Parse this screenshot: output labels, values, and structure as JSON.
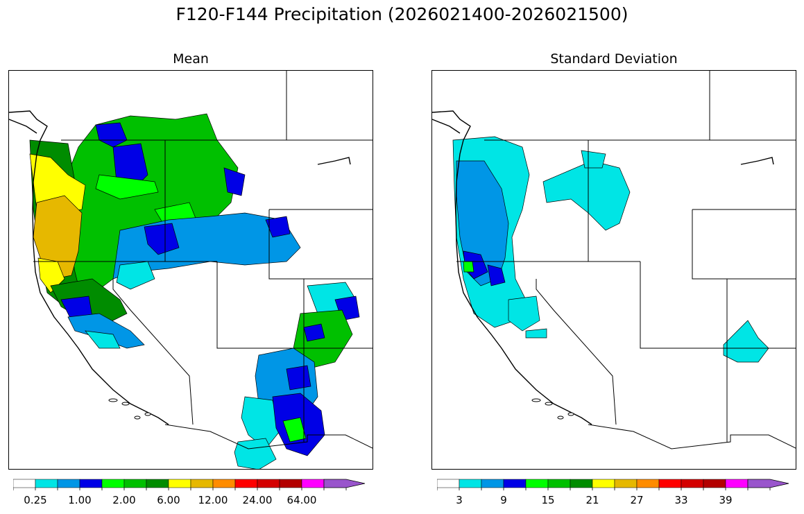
{
  "figure": {
    "title": "F120-F144 Precipitation (2026021400-2026021500)"
  },
  "panels": [
    {
      "title": "Mean",
      "colorbar": {
        "colors": [
          "#ffffff",
          "#00e5e5",
          "#0096e6",
          "#0000e6",
          "#00ff00",
          "#00c000",
          "#008c00",
          "#ffff00",
          "#e6b800",
          "#ff8c00",
          "#ff0000",
          "#d40000",
          "#b30000",
          "#ff00ff",
          "#9955cc"
        ],
        "tick_labels": [
          "0.25",
          "1.00",
          "2.00",
          "6.00",
          "12.00",
          "24.00",
          "64.00"
        ],
        "tick_bins": [
          1,
          3,
          5,
          7,
          9,
          11,
          13
        ],
        "extend": "max"
      }
    },
    {
      "title": "Standard Deviation",
      "colorbar": {
        "colors": [
          "#ffffff",
          "#00e5e5",
          "#0096e6",
          "#0000e6",
          "#00ff00",
          "#00c000",
          "#008c00",
          "#ffff00",
          "#e6b800",
          "#ff8c00",
          "#ff0000",
          "#d40000",
          "#b30000",
          "#ff00ff",
          "#9955cc"
        ],
        "tick_labels": [
          "3",
          "9",
          "15",
          "21",
          "27",
          "33",
          "39"
        ],
        "tick_bins": [
          1,
          3,
          5,
          7,
          9,
          11,
          13
        ],
        "extend": "max"
      }
    }
  ]
}
